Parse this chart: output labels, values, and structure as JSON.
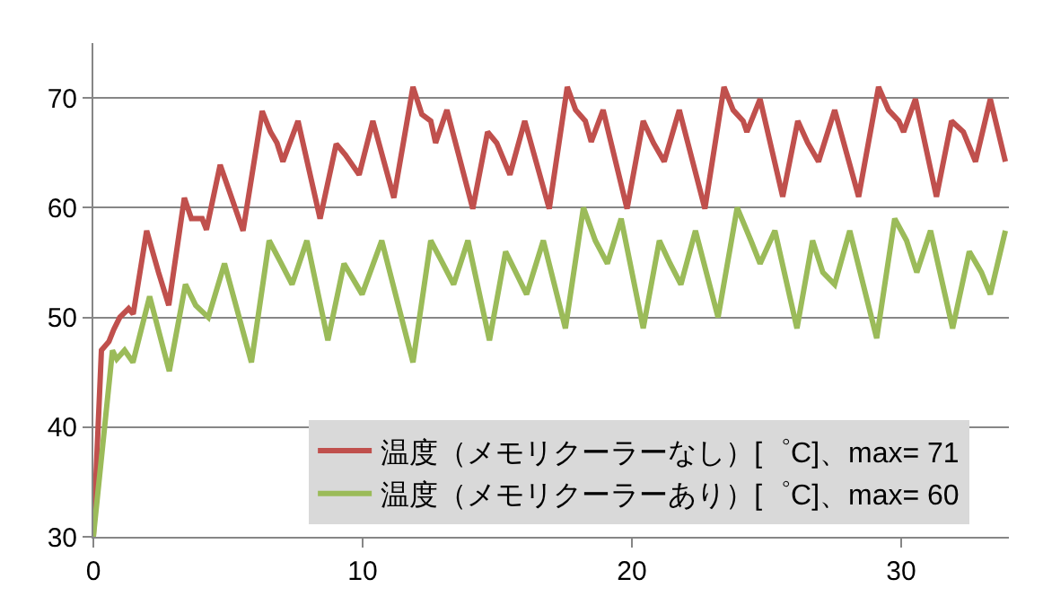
{
  "chart_data": {
    "type": "line",
    "xlim": [
      0,
      34
    ],
    "ylim": [
      30,
      75
    ],
    "xticks": [
      0,
      10,
      20,
      30
    ],
    "yticks": [
      30,
      40,
      50,
      60,
      70
    ],
    "grid": "y",
    "legend": "bottom right",
    "marker": "none",
    "line_style": "solid",
    "series": [
      {
        "name": "温度（メモリクーラーなし）[゜C]、max= 71",
        "color": "#c0504d",
        "x": [
          0,
          0.3,
          0.58,
          0.76,
          0.98,
          1.31,
          1.48,
          1.98,
          2.42,
          2.8,
          3.38,
          3.64,
          4.04,
          4.2,
          4.71,
          5.56,
          6.27,
          6.58,
          6.82,
          7.04,
          7.6,
          8.42,
          9.02,
          9.36,
          9.87,
          10.38,
          11.16,
          11.87,
          12.2,
          12.53,
          12.71,
          13.13,
          14.09,
          14.64,
          14.98,
          15.47,
          16.02,
          16.93,
          17.6,
          17.91,
          18.27,
          18.49,
          18.93,
          19.82,
          20.42,
          20.8,
          21.2,
          21.76,
          22.71,
          23.42,
          23.76,
          24.13,
          24.27,
          24.76,
          25.6,
          26.16,
          26.53,
          26.93,
          27.53,
          28.42,
          29.16,
          29.53,
          29.91,
          30.09,
          30.53,
          31.31,
          31.87,
          32.31,
          32.76,
          33.31,
          33.87
        ],
        "values": [
          30,
          47,
          47.8,
          48.9,
          50,
          50.8,
          50.3,
          57.9,
          54.1,
          51.1,
          60.9,
          59,
          59,
          58,
          63.9,
          57.9,
          68.8,
          66.9,
          65.9,
          64.2,
          67.9,
          59,
          65.8,
          64.8,
          63,
          67.9,
          60.9,
          71,
          68.5,
          67.9,
          65.9,
          68.9,
          59.9,
          66.9,
          65.9,
          63,
          67.9,
          59.9,
          71,
          68.9,
          67.9,
          66,
          68.9,
          59.9,
          67.9,
          65.9,
          64.2,
          68.9,
          59.9,
          71,
          68.9,
          67.9,
          66.9,
          69.9,
          61,
          67.9,
          65.9,
          64.2,
          68.9,
          61,
          71,
          68.9,
          67.9,
          66.9,
          69.9,
          61,
          67.9,
          66.9,
          64.2,
          69.9,
          64.2
        ]
      },
      {
        "name": "温度（メモリクーラーあり）[゜C]、max= 60",
        "color": "#9bbb59",
        "x": [
          0,
          0.71,
          0.87,
          1.16,
          1.47,
          2.09,
          2.82,
          3.42,
          3.8,
          4.27,
          4.87,
          5.87,
          6.53,
          6.98,
          7.38,
          7.93,
          8.71,
          9.31,
          9.98,
          10.71,
          11.87,
          12.53,
          12.98,
          13.38,
          13.91,
          14.71,
          15.31,
          16.09,
          16.71,
          17.53,
          18.2,
          18.64,
          19.09,
          19.6,
          20.42,
          21.02,
          21.42,
          21.82,
          22.36,
          23.2,
          23.91,
          24.42,
          24.76,
          25.31,
          26.13,
          26.71,
          27.09,
          27.53,
          28.09,
          29.09,
          29.76,
          30.2,
          30.58,
          31.09,
          31.91,
          32.53,
          32.98,
          33.31,
          33.87
        ],
        "values": [
          30,
          47,
          46.2,
          47,
          45.9,
          51.9,
          45.1,
          53,
          51.1,
          50,
          54.9,
          45.9,
          57,
          54.9,
          53,
          57,
          47.9,
          54.9,
          52.1,
          57,
          45.9,
          57,
          54.9,
          53,
          57,
          47.9,
          56,
          52.1,
          57,
          49,
          60,
          57,
          54.9,
          59,
          49,
          57,
          54.9,
          53,
          57.9,
          50,
          60,
          57,
          54.9,
          57.9,
          49,
          57,
          54.1,
          53,
          57.9,
          48.1,
          59,
          57,
          54.1,
          57.9,
          49,
          56,
          54.1,
          52.1,
          57.9
        ]
      }
    ]
  }
}
